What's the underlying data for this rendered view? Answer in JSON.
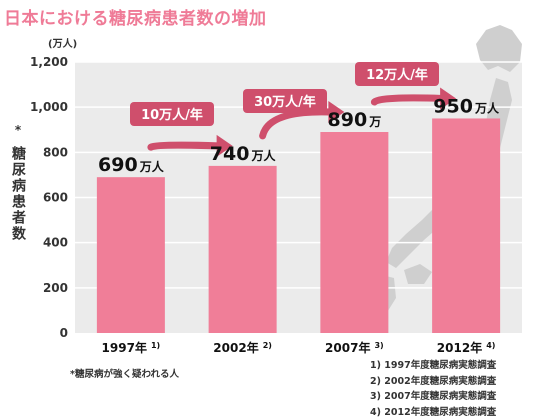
{
  "title": "日本における糖尿病患者数の増加",
  "colors": {
    "title": "#ef7b97",
    "plot_bg": "#ebebeb",
    "grid": "#ffffff",
    "bar": "#f07e98",
    "badge": "#cf4f6c",
    "map": "#cfcfcf"
  },
  "icons": {
    "background": "japan-map-icon",
    "arrows": "curved-arrow-icon"
  },
  "chart_data": {
    "type": "bar",
    "ylabel": "糖尿病患者数",
    "ylabel_mark": "*",
    "yunit": "(万人)",
    "ylim": [
      0,
      1200
    ],
    "yticks": [
      0,
      200,
      400,
      600,
      800,
      1000,
      1200
    ],
    "ytick_labels": [
      "0",
      "200",
      "400",
      "600",
      "800",
      "1,000",
      "1,200"
    ],
    "grid": true,
    "categories": [
      "1997年",
      "2002年",
      "2007年",
      "2012年"
    ],
    "category_notes": [
      "1)",
      "2)",
      "3)",
      "4)"
    ],
    "values": [
      690,
      740,
      890,
      950
    ],
    "value_numbers": [
      "690",
      "740",
      "890",
      "950"
    ],
    "value_units": [
      "万人",
      "万人",
      "万",
      "万人"
    ],
    "increase_labels": [
      "10万人/年",
      "30万人/年",
      "12万人/年"
    ]
  },
  "footnote": "*糖尿病が強く疑われる人",
  "sources": [
    "1) 1997年度糖尿病実態調査",
    "2) 2002年度糖尿病実態調査",
    "3) 2007年度糖尿病実態調査",
    "4) 2012年度糖尿病実態調査"
  ]
}
